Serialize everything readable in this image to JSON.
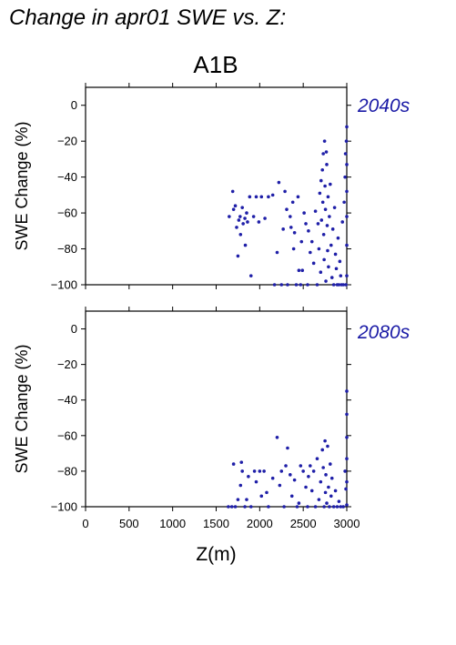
{
  "title": "Change in apr01 SWE vs. Z:",
  "scenario": "A1B",
  "colors": {
    "points": "#1f1fa8",
    "period_label": "#1a1aa6",
    "axis": "#000000"
  },
  "chart_data": [
    {
      "type": "scatter",
      "period": "2040s",
      "ylabel": "SWE Change (%)",
      "xlabel": "",
      "xlim": [
        0,
        3000
      ],
      "ylim": [
        -100,
        10
      ],
      "xticks": [
        "0",
        "500",
        "1000",
        "1500",
        "2000",
        "2500",
        "3000"
      ],
      "yticks": [
        "0",
        "−20",
        "−40",
        "−60",
        "−80",
        "−100"
      ],
      "grid": false,
      "points": [
        [
          1650,
          -62
        ],
        [
          1690,
          -48
        ],
        [
          1700,
          -58
        ],
        [
          1720,
          -56
        ],
        [
          1735,
          -68
        ],
        [
          1750,
          -84
        ],
        [
          1760,
          -64
        ],
        [
          1775,
          -62
        ],
        [
          1780,
          -72
        ],
        [
          1800,
          -57
        ],
        [
          1810,
          -66
        ],
        [
          1830,
          -63
        ],
        [
          1835,
          -78
        ],
        [
          1850,
          -60
        ],
        [
          1860,
          -65
        ],
        [
          1885,
          -51
        ],
        [
          1900,
          -95
        ],
        [
          1930,
          -62
        ],
        [
          1960,
          -51
        ],
        [
          1990,
          -65
        ],
        [
          2020,
          -51
        ],
        [
          2060,
          -63
        ],
        [
          2100,
          -51
        ],
        [
          2150,
          -50
        ],
        [
          2170,
          -100
        ],
        [
          2200,
          -82
        ],
        [
          2220,
          -43
        ],
        [
          2250,
          -100
        ],
        [
          2270,
          -69
        ],
        [
          2290,
          -48
        ],
        [
          2310,
          -58
        ],
        [
          2320,
          -100
        ],
        [
          2350,
          -62
        ],
        [
          2360,
          -68
        ],
        [
          2380,
          -54
        ],
        [
          2390,
          -80
        ],
        [
          2400,
          -71
        ],
        [
          2420,
          -100
        ],
        [
          2440,
          -51
        ],
        [
          2450,
          -92
        ],
        [
          2470,
          -100
        ],
        [
          2480,
          -76
        ],
        [
          2490,
          -92
        ],
        [
          2510,
          -60
        ],
        [
          2530,
          -66
        ],
        [
          2550,
          -100
        ],
        [
          2560,
          -70
        ],
        [
          2580,
          -82
        ],
        [
          2600,
          -76
        ],
        [
          2620,
          -88
        ],
        [
          2640,
          -59
        ],
        [
          2660,
          -100
        ],
        [
          2670,
          -66
        ],
        [
          2680,
          -80
        ],
        [
          2690,
          -49
        ],
        [
          2700,
          -93
        ],
        [
          2705,
          -42
        ],
        [
          2710,
          -64
        ],
        [
          2720,
          -36
        ],
        [
          2725,
          -54
        ],
        [
          2730,
          -27
        ],
        [
          2735,
          -72
        ],
        [
          2740,
          -86
        ],
        [
          2745,
          -20
        ],
        [
          2750,
          -45
        ],
        [
          2755,
          -58
        ],
        [
          2760,
          -98
        ],
        [
          2765,
          -26
        ],
        [
          2770,
          -33
        ],
        [
          2775,
          -67
        ],
        [
          2780,
          -81
        ],
        [
          2785,
          -51
        ],
        [
          2790,
          -90
        ],
        [
          2800,
          -62
        ],
        [
          2810,
          -44
        ],
        [
          2820,
          -78
        ],
        [
          2830,
          -96
        ],
        [
          2840,
          -69
        ],
        [
          2850,
          -100
        ],
        [
          2860,
          -57
        ],
        [
          2870,
          -83
        ],
        [
          2880,
          -91
        ],
        [
          2890,
          -100
        ],
        [
          2900,
          -74
        ],
        [
          2910,
          -100
        ],
        [
          2920,
          -87
        ],
        [
          2930,
          -95
        ],
        [
          2940,
          -100
        ],
        [
          2950,
          -65
        ],
        [
          2960,
          -100
        ],
        [
          2970,
          -54
        ],
        [
          2980,
          -40
        ],
        [
          2985,
          -27
        ],
        [
          2990,
          -100
        ],
        [
          2995,
          -20
        ],
        [
          3000,
          -12
        ],
        [
          3000,
          -33
        ],
        [
          3000,
          -48
        ],
        [
          3000,
          -62
        ],
        [
          3000,
          -78
        ],
        [
          3000,
          -95
        ]
      ]
    },
    {
      "type": "scatter",
      "period": "2080s",
      "ylabel": "SWE Change (%)",
      "xlabel": "Z(m)",
      "xlim": [
        0,
        3000
      ],
      "ylim": [
        -100,
        10
      ],
      "xticks": [
        "0",
        "500",
        "1000",
        "1500",
        "2000",
        "2500",
        "3000"
      ],
      "yticks": [
        "0",
        "−20",
        "−40",
        "−60",
        "−80",
        "−100"
      ],
      "grid": false,
      "points": [
        [
          1640,
          -100
        ],
        [
          1680,
          -100
        ],
        [
          1700,
          -76
        ],
        [
          1720,
          -100
        ],
        [
          1750,
          -96
        ],
        [
          1780,
          -88
        ],
        [
          1790,
          -75
        ],
        [
          1800,
          -80
        ],
        [
          1830,
          -100
        ],
        [
          1850,
          -96
        ],
        [
          1870,
          -83
        ],
        [
          1900,
          -100
        ],
        [
          1940,
          -80
        ],
        [
          1960,
          -86
        ],
        [
          2000,
          -80
        ],
        [
          2020,
          -94
        ],
        [
          2050,
          -80
        ],
        [
          2080,
          -92
        ],
        [
          2100,
          -100
        ],
        [
          2150,
          -84
        ],
        [
          2200,
          -61
        ],
        [
          2230,
          -88
        ],
        [
          2250,
          -80
        ],
        [
          2280,
          -100
        ],
        [
          2300,
          -77
        ],
        [
          2320,
          -67
        ],
        [
          2350,
          -82
        ],
        [
          2370,
          -94
        ],
        [
          2400,
          -85
        ],
        [
          2430,
          -100
        ],
        [
          2450,
          -98
        ],
        [
          2470,
          -77
        ],
        [
          2500,
          -80
        ],
        [
          2530,
          -89
        ],
        [
          2550,
          -100
        ],
        [
          2560,
          -83
        ],
        [
          2580,
          -77
        ],
        [
          2600,
          -91
        ],
        [
          2620,
          -80
        ],
        [
          2640,
          -100
        ],
        [
          2660,
          -73
        ],
        [
          2680,
          -96
        ],
        [
          2700,
          -86
        ],
        [
          2720,
          -68
        ],
        [
          2730,
          -78
        ],
        [
          2740,
          -100
        ],
        [
          2750,
          -63
        ],
        [
          2755,
          -92
        ],
        [
          2760,
          -82
        ],
        [
          2770,
          -98
        ],
        [
          2780,
          -66
        ],
        [
          2790,
          -89
        ],
        [
          2800,
          -100
        ],
        [
          2810,
          -76
        ],
        [
          2820,
          -94
        ],
        [
          2830,
          -84
        ],
        [
          2850,
          -100
        ],
        [
          2870,
          -91
        ],
        [
          2890,
          -100
        ],
        [
          2910,
          -97
        ],
        [
          2930,
          -100
        ],
        [
          2960,
          -100
        ],
        [
          2980,
          -80
        ],
        [
          2990,
          -90
        ],
        [
          3000,
          -35
        ],
        [
          3000,
          -48
        ],
        [
          3000,
          -61
        ],
        [
          3000,
          -73
        ],
        [
          3000,
          -86
        ],
        [
          3000,
          -99
        ]
      ]
    }
  ]
}
